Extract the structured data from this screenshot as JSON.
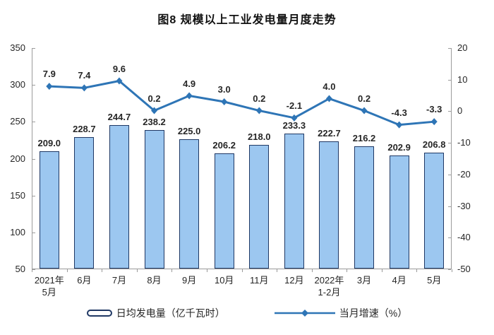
{
  "title": "图8 规模以上工业发电量月度走势",
  "legend": {
    "bar_label": "日均发电量（亿千瓦时）",
    "line_label": "当月增速（%）"
  },
  "colors": {
    "bar_fill": "#9CC7F0",
    "bar_border": "#1F3864",
    "line": "#2E75B6",
    "axis": "#9b9b9b",
    "text": "#262626"
  },
  "chart_data": {
    "type": "bar",
    "subtype": "bar-line-combo",
    "title": "图8 规模以上工业发电量月度走势",
    "categories": [
      "2021年\n5月",
      "6月",
      "7月",
      "8月",
      "9月",
      "10月",
      "11月",
      "12月",
      "2022年\n1-2月",
      "3月",
      "4月",
      "5月"
    ],
    "series": [
      {
        "name": "日均发电量（亿千瓦时）",
        "type": "bar",
        "axis": "left",
        "values": [
          209.0,
          228.7,
          244.7,
          238.2,
          225.0,
          206.2,
          218.0,
          233.3,
          222.7,
          216.2,
          202.9,
          206.8
        ]
      },
      {
        "name": "当月增速（%）",
        "type": "line",
        "axis": "right",
        "values": [
          7.9,
          7.4,
          9.6,
          0.2,
          4.9,
          3.0,
          0.2,
          -2.1,
          4.0,
          0.2,
          -4.3,
          -3.3
        ]
      }
    ],
    "left_axis": {
      "min": 50,
      "max": 350,
      "step": 50,
      "ticks": [
        350,
        300,
        250,
        200,
        150,
        100,
        50
      ]
    },
    "right_axis": {
      "min": -50,
      "max": 20,
      "step": 10,
      "ticks": [
        20,
        10,
        0,
        -10,
        -20,
        -30,
        -40,
        -50
      ]
    },
    "grid": false,
    "legend_position": "bottom",
    "data_labels": true
  }
}
